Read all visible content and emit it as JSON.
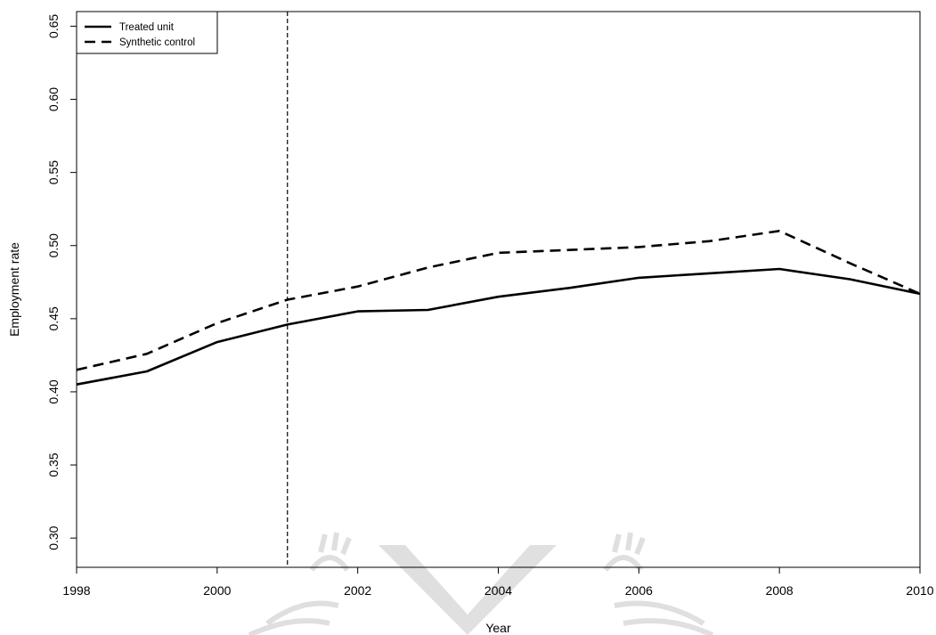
{
  "chart_data": {
    "type": "line",
    "xlabel": "Year",
    "ylabel": "Employment rate",
    "xlim": [
      1998,
      2010
    ],
    "ylim": [
      0.28,
      0.66
    ],
    "x_ticks": [
      1998,
      2000,
      2002,
      2004,
      2006,
      2008,
      2010
    ],
    "x_tick_labels": [
      "1998",
      "2000",
      "2002",
      "2004",
      "2006",
      "2008",
      "2010"
    ],
    "y_ticks": [
      0.3,
      0.35,
      0.4,
      0.45,
      0.5,
      0.55,
      0.6,
      0.65
    ],
    "y_tick_labels": [
      "0.30",
      "0.35",
      "0.40",
      "0.45",
      "0.50",
      "0.55",
      "0.60",
      "0.65"
    ],
    "x": [
      1998,
      1999,
      2000,
      2001,
      2002,
      2003,
      2004,
      2005,
      2006,
      2007,
      2008,
      2009,
      2010
    ],
    "series": [
      {
        "name": "Treated unit",
        "line_style": "solid",
        "color": "#000000",
        "values": [
          0.405,
          0.414,
          0.434,
          0.446,
          0.455,
          0.456,
          0.465,
          0.471,
          0.478,
          0.481,
          0.484,
          0.477,
          0.467
        ]
      },
      {
        "name": "Synthetic control",
        "line_style": "dashed",
        "color": "#000000",
        "values": [
          0.415,
          0.426,
          0.447,
          0.463,
          0.472,
          0.485,
          0.495,
          0.497,
          0.499,
          0.503,
          0.51,
          0.488,
          0.467
        ]
      }
    ],
    "reference_line": {
      "orientation": "vertical",
      "x": 2001,
      "line_style": "dashed"
    },
    "legend_position": "top-left",
    "grid": false,
    "watermark": "university crest"
  }
}
